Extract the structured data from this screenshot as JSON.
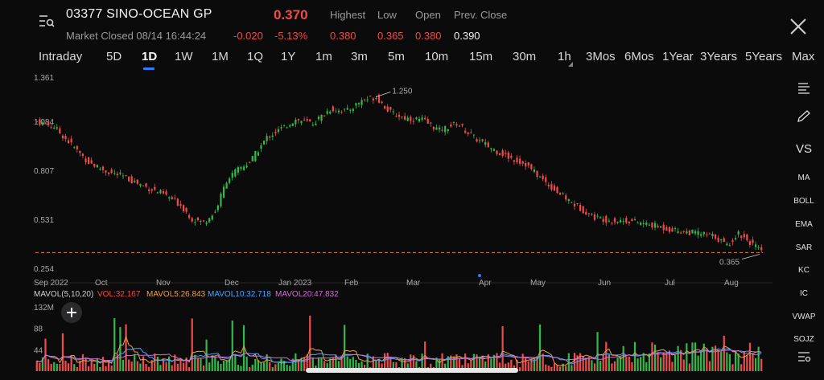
{
  "header": {
    "symbol_name": "03377 SINO-OCEAN GP",
    "price": "0.370",
    "status": "Market Closed 08/14 16:44:24",
    "change": "-0.020",
    "change_pct": "-5.13%",
    "labels": {
      "high": "Highest",
      "low": "Low",
      "open": "Open",
      "prev_close": "Prev. Close"
    },
    "values": {
      "high": "0.380",
      "low": "0.365",
      "open": "0.380",
      "prev_close": "0.390"
    }
  },
  "tabs": [
    "Intraday",
    "5D",
    "1D",
    "1W",
    "1M",
    "1Q",
    "1Y",
    "1m",
    "3m",
    "5m",
    "10m",
    "15m",
    "30m",
    "1h",
    "3Mos",
    "6Mos",
    "1Year",
    "3Years",
    "5Years",
    "Max"
  ],
  "active_tab": "1D",
  "sidebar": {
    "items": [
      "VS",
      "MA",
      "BOLL",
      "EMA",
      "SAR",
      "KC",
      "IC",
      "VWAP",
      "SOJZ"
    ]
  },
  "indicators": {
    "mavol_label": "MAVOL(5,10,20)",
    "vol": "VOL:32.167",
    "ma5": "MAVOL5:26.843",
    "ma10": "MAVOL10:32.718",
    "ma20": "MAVOL20:47.832"
  },
  "colors": {
    "up": "#33b84a",
    "down": "#ef4b4b",
    "ma5": "#f0a040",
    "ma10": "#4da3ff",
    "ma20": "#d070d0",
    "accent": "#2f7dff"
  },
  "chart_data": {
    "type": "candlestick",
    "x_labels": [
      "Sep 2022",
      "Oct",
      "Nov",
      "Dec",
      "Jan 2023",
      "Feb",
      "Mar",
      "Apr",
      "May",
      "Jun",
      "Jul",
      "Aug"
    ],
    "price_axis": {
      "ticks": [
        "1.361",
        "1.084",
        "0.807",
        "0.531",
        "0.254"
      ],
      "ylim": [
        0.254,
        1.361
      ]
    },
    "volume_axis": {
      "ticks": [
        "132M",
        "88",
        "44"
      ],
      "ylim": [
        0,
        132
      ]
    },
    "annotations": {
      "highest": "1.250",
      "lowest": "0.365"
    },
    "close_anchors": [
      [
        0,
        1.11
      ],
      [
        6,
        1.08
      ],
      [
        12,
        0.98
      ],
      [
        18,
        0.88
      ],
      [
        24,
        0.83
      ],
      [
        30,
        0.8
      ],
      [
        38,
        0.74
      ],
      [
        44,
        0.7
      ],
      [
        50,
        0.64
      ],
      [
        54,
        0.56
      ],
      [
        58,
        0.54
      ],
      [
        62,
        0.6
      ],
      [
        66,
        0.78
      ],
      [
        70,
        0.84
      ],
      [
        74,
        0.88
      ],
      [
        80,
        1.02
      ],
      [
        85,
        1.07
      ],
      [
        90,
        1.12
      ],
      [
        96,
        1.1
      ],
      [
        102,
        1.18
      ],
      [
        108,
        1.17
      ],
      [
        113,
        1.23
      ],
      [
        118,
        1.25
      ],
      [
        123,
        1.16
      ],
      [
        128,
        1.13
      ],
      [
        134,
        1.12
      ],
      [
        140,
        1.06
      ],
      [
        146,
        1.1
      ],
      [
        152,
        1.02
      ],
      [
        158,
        0.96
      ],
      [
        164,
        0.91
      ],
      [
        170,
        0.87
      ],
      [
        176,
        0.78
      ],
      [
        182,
        0.7
      ],
      [
        188,
        0.63
      ],
      [
        194,
        0.57
      ],
      [
        200,
        0.55
      ],
      [
        206,
        0.55
      ],
      [
        212,
        0.53
      ],
      [
        218,
        0.51
      ],
      [
        224,
        0.49
      ],
      [
        230,
        0.48
      ],
      [
        236,
        0.46
      ],
      [
        240,
        0.41
      ],
      [
        244,
        0.48
      ],
      [
        248,
        0.43
      ],
      [
        252,
        0.37
      ]
    ]
  }
}
